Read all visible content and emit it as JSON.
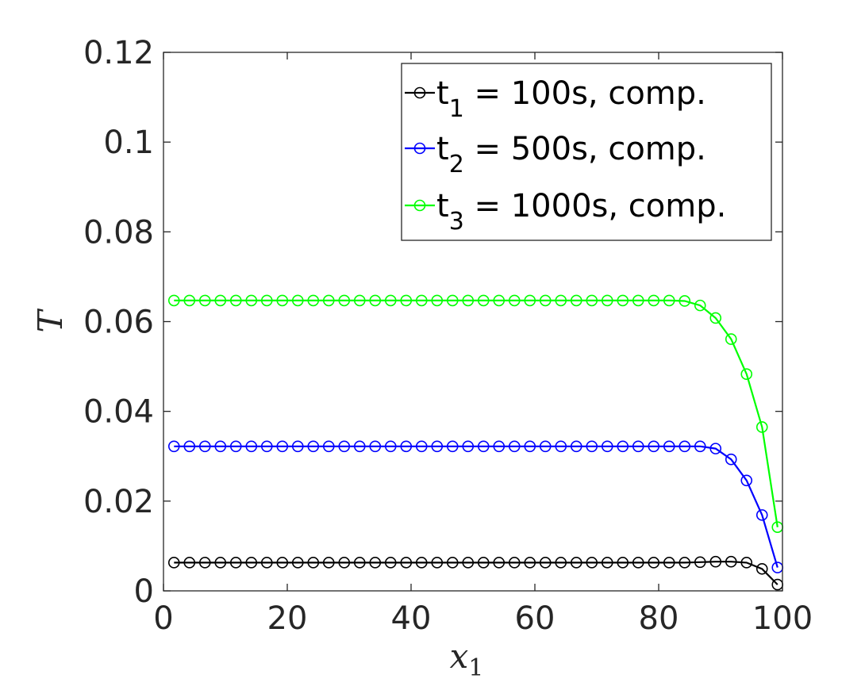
{
  "chart_data": {
    "type": "line",
    "xlabel": {
      "main": "x",
      "sub": "1"
    },
    "ylabel": "T",
    "xlim": [
      0,
      100
    ],
    "ylim": [
      0,
      0.12
    ],
    "xticks": [
      "0",
      "20",
      "40",
      "60",
      "80",
      "100"
    ],
    "yticks": [
      "0",
      "0.02",
      "0.04",
      "0.06",
      "0.08",
      "0.1",
      "0.12"
    ],
    "legend_position": "top-right",
    "grid": false,
    "series": [
      {
        "label": {
          "main": "t",
          "sub": "1",
          "rest": " = 100s, comp."
        },
        "color": "#000000",
        "marker": "circle",
        "x": [
          1.7,
          4.2,
          6.7,
          9.2,
          11.7,
          14.2,
          16.7,
          19.2,
          21.7,
          24.2,
          26.7,
          29.2,
          31.7,
          34.2,
          36.7,
          39.2,
          41.7,
          44.2,
          46.7,
          49.2,
          51.7,
          54.2,
          56.7,
          59.2,
          61.7,
          64.2,
          66.7,
          69.2,
          71.7,
          74.2,
          76.7,
          79.2,
          81.7,
          84.2,
          86.7,
          89.2,
          91.7,
          94.2,
          96.7,
          99.2
        ],
        "y": [
          0.0063,
          0.0063,
          0.0063,
          0.0063,
          0.0063,
          0.0063,
          0.0063,
          0.0063,
          0.0063,
          0.0063,
          0.0063,
          0.0063,
          0.0063,
          0.0063,
          0.0063,
          0.0063,
          0.0063,
          0.0063,
          0.0063,
          0.0063,
          0.0063,
          0.0063,
          0.0063,
          0.0063,
          0.0063,
          0.0063,
          0.0063,
          0.0063,
          0.0063,
          0.0063,
          0.0063,
          0.0063,
          0.0063,
          0.0063,
          0.0064,
          0.0065,
          0.0065,
          0.0063,
          0.0049,
          0.0014
        ]
      },
      {
        "label": {
          "main": "t",
          "sub": "2",
          "rest": " = 500s, comp."
        },
        "color": "#0000ff",
        "marker": "circle",
        "x": [
          1.7,
          4.2,
          6.7,
          9.2,
          11.7,
          14.2,
          16.7,
          19.2,
          21.7,
          24.2,
          26.7,
          29.2,
          31.7,
          34.2,
          36.7,
          39.2,
          41.7,
          44.2,
          46.7,
          49.2,
          51.7,
          54.2,
          56.7,
          59.2,
          61.7,
          64.2,
          66.7,
          69.2,
          71.7,
          74.2,
          76.7,
          79.2,
          81.7,
          84.2,
          86.7,
          89.2,
          91.7,
          94.2,
          96.7,
          99.2
        ],
        "y": [
          0.0322,
          0.0322,
          0.0322,
          0.0322,
          0.0322,
          0.0322,
          0.0322,
          0.0322,
          0.0322,
          0.0322,
          0.0322,
          0.0322,
          0.0322,
          0.0322,
          0.0322,
          0.0322,
          0.0322,
          0.0322,
          0.0322,
          0.0322,
          0.0322,
          0.0322,
          0.0322,
          0.0322,
          0.0322,
          0.0322,
          0.0322,
          0.0322,
          0.0322,
          0.0322,
          0.0322,
          0.0322,
          0.0322,
          0.0322,
          0.0322,
          0.0317,
          0.0293,
          0.0246,
          0.0169,
          0.0052
        ]
      },
      {
        "label": {
          "main": "t",
          "sub": "3",
          "rest": " = 1000s, comp."
        },
        "color": "#00ff00",
        "marker": "circle",
        "x": [
          1.7,
          4.2,
          6.7,
          9.2,
          11.7,
          14.2,
          16.7,
          19.2,
          21.7,
          24.2,
          26.7,
          29.2,
          31.7,
          34.2,
          36.7,
          39.2,
          41.7,
          44.2,
          46.7,
          49.2,
          51.7,
          54.2,
          56.7,
          59.2,
          61.7,
          64.2,
          66.7,
          69.2,
          71.7,
          74.2,
          76.7,
          79.2,
          81.7,
          84.2,
          86.7,
          89.2,
          91.7,
          94.2,
          96.7,
          99.2
        ],
        "y": [
          0.0647,
          0.0647,
          0.0647,
          0.0647,
          0.0647,
          0.0647,
          0.0647,
          0.0647,
          0.0647,
          0.0647,
          0.0647,
          0.0647,
          0.0647,
          0.0647,
          0.0647,
          0.0647,
          0.0647,
          0.0647,
          0.0647,
          0.0647,
          0.0647,
          0.0647,
          0.0647,
          0.0647,
          0.0647,
          0.0647,
          0.0647,
          0.0647,
          0.0647,
          0.0647,
          0.0647,
          0.0647,
          0.0647,
          0.0646,
          0.0636,
          0.0608,
          0.0561,
          0.0483,
          0.0365,
          0.0142
        ]
      }
    ]
  }
}
